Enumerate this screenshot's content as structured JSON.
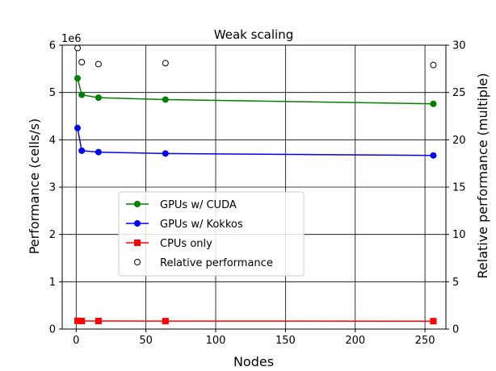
{
  "chart_data": {
    "type": "line",
    "title": "Weak scaling",
    "xlabel": "Nodes",
    "ylabel": "Performance (cells/s)",
    "y2label": "Relative performance (multiple)",
    "y_offset_label": "1e6",
    "xlim": [
      -10,
      265
    ],
    "ylim": [
      0,
      6000000
    ],
    "y2lim": [
      0,
      30
    ],
    "x_ticks": [
      0,
      50,
      100,
      150,
      200,
      250
    ],
    "y_ticks": [
      0,
      1,
      2,
      3,
      4,
      5,
      6
    ],
    "y2_ticks": [
      0,
      5,
      10,
      15,
      20,
      25,
      30
    ],
    "grid": true,
    "legend_position": "center-left",
    "series": [
      {
        "name": "GPUs w/ CUDA",
        "color": "#008000",
        "marker": "circle",
        "axis": "left",
        "x": [
          1,
          4,
          16,
          64,
          256
        ],
        "values": [
          5300000,
          4950000,
          4890000,
          4850000,
          4760000
        ]
      },
      {
        "name": "GPUs w/ Kokkos",
        "color": "#0000ff",
        "marker": "circle",
        "axis": "left",
        "x": [
          1,
          4,
          16,
          64,
          256
        ],
        "values": [
          4250000,
          3770000,
          3740000,
          3710000,
          3670000
        ]
      },
      {
        "name": "CPUs only",
        "color": "#ff0000",
        "marker": "square",
        "axis": "left",
        "x": [
          1,
          4,
          16,
          64,
          256
        ],
        "values": [
          175000,
          170000,
          170000,
          168000,
          167000
        ]
      },
      {
        "name": "Relative performance",
        "color": "#000000",
        "marker": "open-circle",
        "axis": "right",
        "line": false,
        "x": [
          1,
          4,
          16,
          64,
          256
        ],
        "values": [
          29.7,
          28.2,
          28.0,
          28.1,
          27.9
        ]
      }
    ]
  }
}
